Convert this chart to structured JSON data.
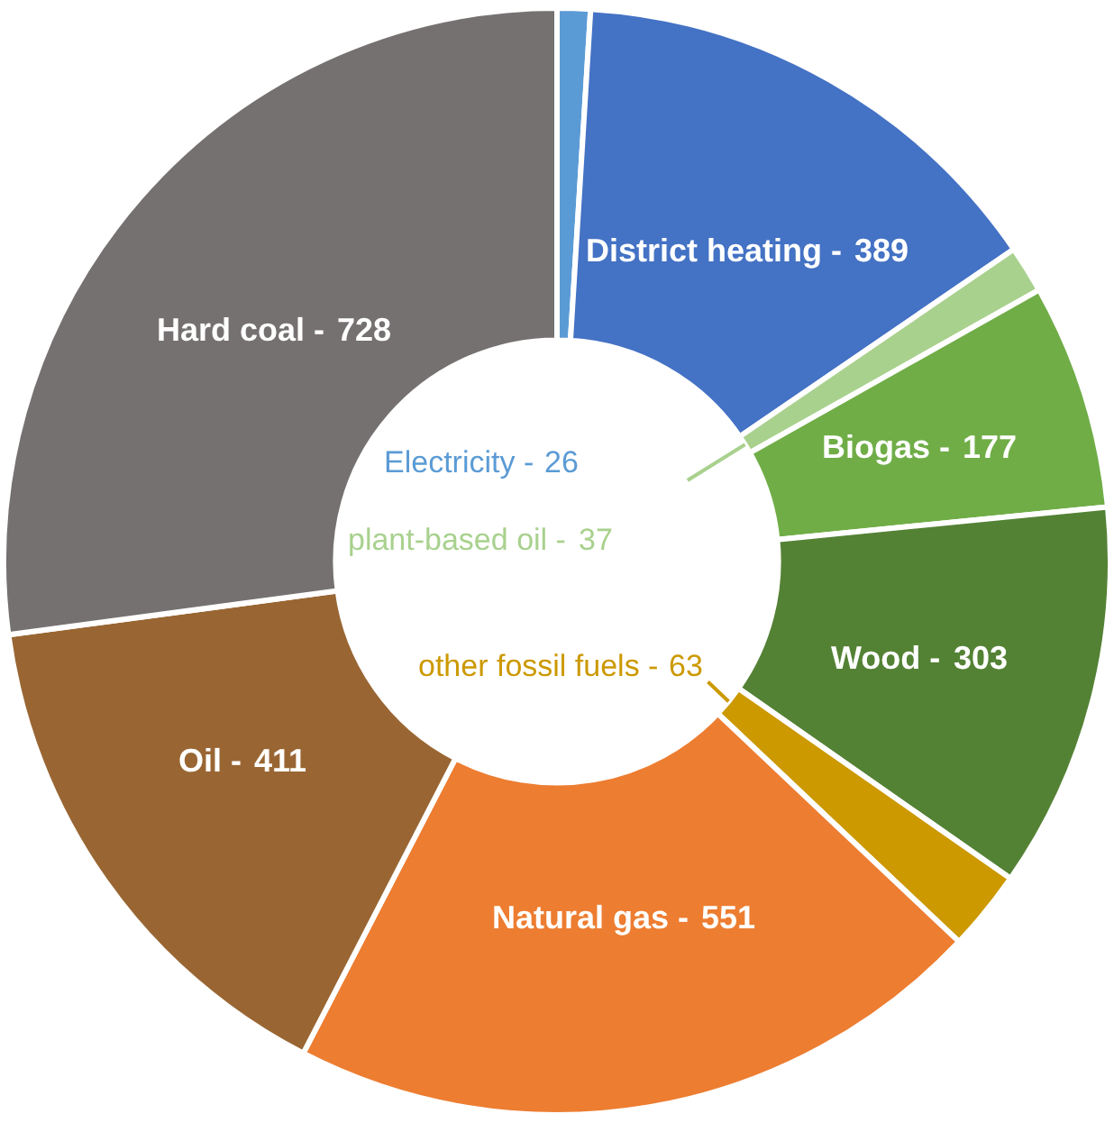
{
  "chart_data": {
    "type": "donut",
    "categories": [
      "Electricity -",
      "District heating -",
      "plant-based oil -",
      "Biogas -",
      "Wood -",
      "other fossil fuels -",
      "Natural gas -",
      "Oil -",
      "Hard coal -"
    ],
    "values": [
      26,
      389,
      37,
      177,
      303,
      63,
      551,
      411,
      728
    ],
    "colors": [
      "#5b9bd5",
      "#4472c4",
      "#a9d18e",
      "#70ad47",
      "#548235",
      "#cc9900",
      "#ed7d31",
      "#996633",
      "#767171"
    ],
    "data_labels": true
  }
}
